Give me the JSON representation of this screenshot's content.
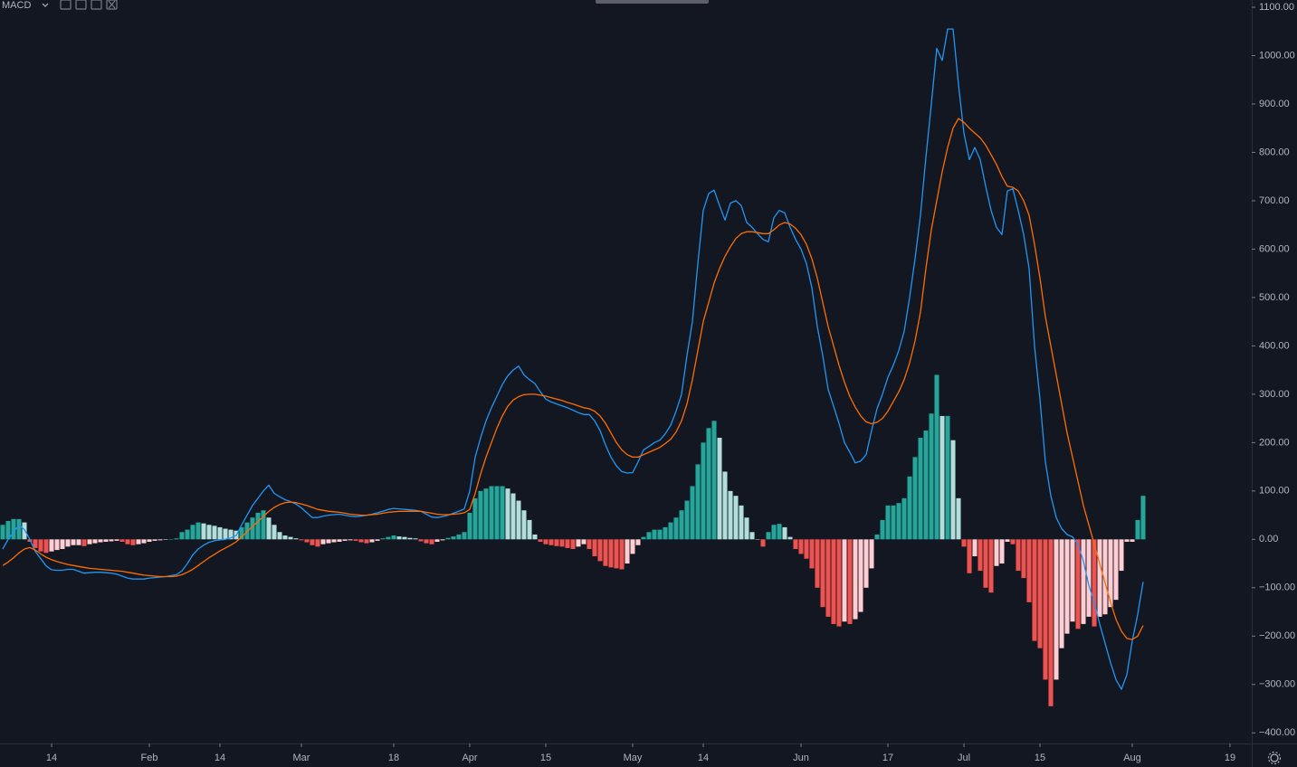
{
  "chart_data": {
    "type": "macd",
    "title": "MACD",
    "categories": [
      null,
      null,
      null,
      null,
      null,
      null,
      null,
      null,
      null,
      "14",
      null,
      null,
      null,
      null,
      null,
      null,
      null,
      null,
      null,
      null,
      null,
      null,
      null,
      null,
      null,
      null,
      null,
      "Feb",
      null,
      null,
      null,
      null,
      null,
      null,
      null,
      null,
      null,
      null,
      null,
      null,
      "14",
      null,
      null,
      null,
      null,
      null,
      null,
      null,
      null,
      null,
      null,
      null,
      null,
      null,
      null,
      "Mar",
      null,
      null,
      null,
      null,
      null,
      null,
      null,
      null,
      null,
      null,
      null,
      null,
      null,
      null,
      null,
      null,
      "18",
      null,
      null,
      null,
      null,
      null,
      null,
      null,
      null,
      null,
      null,
      null,
      null,
      null,
      "Apr",
      null,
      null,
      null,
      null,
      null,
      null,
      null,
      null,
      null,
      null,
      null,
      null,
      null,
      "15",
      null,
      null,
      null,
      null,
      null,
      null,
      null,
      null,
      null,
      null,
      null,
      null,
      null,
      null,
      null,
      "May",
      null,
      null,
      null,
      null,
      null,
      null,
      null,
      null,
      null,
      null,
      null,
      null,
      "14",
      null,
      null,
      null,
      null,
      null,
      null,
      null,
      null,
      null,
      null,
      null,
      null,
      null,
      null,
      null,
      null,
      null,
      "Jun",
      null,
      null,
      null,
      null,
      null,
      null,
      null,
      null,
      null,
      null,
      null,
      null,
      null,
      null,
      null,
      "17",
      null,
      null,
      null,
      null,
      null,
      null,
      null,
      null,
      null,
      null,
      null,
      null,
      null,
      "Jul",
      null,
      null,
      null,
      null,
      null,
      null,
      null,
      null,
      null,
      null,
      null,
      null,
      null,
      "15",
      null,
      null,
      null,
      null,
      null,
      null,
      null,
      null,
      null,
      null,
      null,
      null,
      null,
      null,
      null,
      null,
      "Aug",
      null,
      null,
      null,
      null,
      null,
      null,
      null,
      null,
      null,
      null,
      null,
      null,
      null,
      null,
      null,
      null,
      null,
      "19",
      null,
      null,
      null,
      null
    ],
    "series": [
      {
        "type": "bar",
        "colors": {
          "rising_above": "#26a69a",
          "falling_above": "#b2dfdb",
          "rising_below": "#ffcdd2",
          "falling_below": "#ef5350"
        },
        "values": [
          30,
          38,
          42,
          42,
          35,
          -5,
          -18,
          -25,
          -28,
          -25,
          -22,
          -20,
          -15,
          -12,
          -12,
          -14,
          -10,
          -8,
          -6,
          -5,
          -4,
          -3,
          -5,
          -10,
          -12,
          -10,
          -8,
          -5,
          -3,
          -2,
          -1,
          0,
          2,
          15,
          20,
          30,
          35,
          33,
          30,
          28,
          25,
          22,
          20,
          18,
          25,
          35,
          45,
          55,
          60,
          45,
          30,
          15,
          8,
          5,
          2,
          -2,
          -6,
          -12,
          -15,
          -10,
          -8,
          -6,
          -5,
          -3,
          -2,
          -3,
          -6,
          -8,
          -6,
          -3,
          2,
          5,
          8,
          6,
          5,
          3,
          2,
          -4,
          -8,
          -10,
          -5,
          -2,
          3,
          6,
          10,
          15,
          55,
          85,
          100,
          105,
          110,
          110,
          110,
          105,
          95,
          80,
          60,
          40,
          10,
          -5,
          -10,
          -12,
          -14,
          -15,
          -18,
          -20,
          -15,
          -10,
          -20,
          -35,
          -45,
          -55,
          -58,
          -60,
          -62,
          -50,
          -30,
          -12,
          5,
          15,
          20,
          20,
          25,
          35,
          45,
          60,
          80,
          110,
          155,
          200,
          230,
          245,
          210,
          140,
          100,
          90,
          70,
          45,
          15,
          0,
          -15,
          15,
          30,
          32,
          25,
          5,
          -20,
          -30,
          -40,
          -60,
          -100,
          -140,
          -160,
          -175,
          -180,
          -170,
          -175,
          -165,
          -150,
          -100,
          -60,
          10,
          40,
          70,
          70,
          75,
          85,
          130,
          170,
          210,
          225,
          260,
          340,
          255,
          255,
          205,
          85,
          -15,
          -70,
          -35,
          -65,
          -100,
          -110,
          -55,
          -50,
          -5,
          -10,
          -65,
          -80,
          -130,
          -210,
          -225,
          -290,
          -345,
          -290,
          -225,
          -195,
          -170,
          -185,
          -175,
          -160,
          -180,
          -160,
          -155,
          -140,
          -125,
          -65,
          -5,
          -5,
          40,
          90,
          null,
          null,
          null,
          null,
          null,
          null,
          null,
          null,
          null,
          null,
          null,
          null,
          null,
          null,
          null,
          null,
          null,
          null,
          null,
          null
        ]
      },
      {
        "type": "line",
        "color": "#2196f3",
        "values": [
          -20,
          0,
          15,
          30,
          20,
          0,
          -25,
          -40,
          -55,
          -63,
          -64,
          -64,
          -62,
          -62,
          -66,
          -70,
          -69,
          -68,
          -68,
          -69,
          -70,
          -72,
          -76,
          -80,
          -82,
          -82,
          -82,
          -80,
          -79,
          -78,
          -77,
          -75,
          -73,
          -65,
          -50,
          -32,
          -20,
          -12,
          -6,
          -3,
          -1,
          0,
          3,
          8,
          30,
          50,
          70,
          85,
          100,
          112,
          95,
          88,
          82,
          78,
          73,
          65,
          55,
          45,
          45,
          48,
          50,
          51,
          52,
          50,
          48,
          47,
          48,
          50,
          52,
          55,
          58,
          62,
          64,
          63,
          62,
          61,
          60,
          58,
          52,
          46,
          45,
          47,
          50,
          54,
          58,
          63,
          100,
          170,
          210,
          245,
          272,
          296,
          320,
          338,
          350,
          358,
          340,
          330,
          322,
          305,
          290,
          284,
          280,
          276,
          272,
          267,
          262,
          258,
          258,
          245,
          225,
          195,
          170,
          152,
          140,
          137,
          138,
          160,
          185,
          192,
          200,
          205,
          218,
          236,
          265,
          300,
          380,
          450,
          570,
          680,
          715,
          722,
          690,
          660,
          695,
          700,
          690,
          655,
          645,
          632,
          620,
          615,
          665,
          680,
          675,
          645,
          620,
          600,
          570,
          520,
          440,
          380,
          310,
          275,
          240,
          200,
          180,
          158,
          162,
          175,
          225,
          270,
          300,
          335,
          360,
          390,
          430,
          500,
          580,
          670,
          790,
          900,
          1015,
          990,
          1055,
          1055,
          940,
          840,
          785,
          810,
          785,
          730,
          680,
          645,
          630,
          720,
          725,
          680,
          630,
          560,
          400,
          290,
          160,
          90,
          45,
          22,
          10,
          5,
          -10,
          -45,
          -95,
          -130,
          -175,
          -215,
          -255,
          -290,
          -310,
          -280,
          -210,
          -155,
          -88,
          null,
          null,
          null,
          null,
          null,
          null,
          null,
          null,
          null,
          null,
          null,
          null,
          null,
          null,
          null,
          null,
          null,
          null,
          null,
          null
        ]
      },
      {
        "type": "line",
        "color": "#ff6d00",
        "values": [
          -54,
          -47,
          -38,
          -28,
          -20,
          -17,
          -22,
          -30,
          -37,
          -42,
          -46,
          -49,
          -52,
          -54,
          -56,
          -58,
          -60,
          -61,
          -62,
          -63,
          -64,
          -65,
          -66,
          -68,
          -70,
          -72,
          -74,
          -75,
          -76,
          -77,
          -77,
          -77,
          -76,
          -73,
          -68,
          -62,
          -54,
          -46,
          -38,
          -31,
          -24,
          -18,
          -12,
          -5,
          5,
          16,
          27,
          37,
          47,
          58,
          66,
          72,
          76,
          77,
          76,
          73,
          70,
          66,
          62,
          60,
          58,
          57,
          56,
          54,
          52,
          51,
          50,
          50,
          51,
          52,
          54,
          56,
          57,
          58,
          58,
          58,
          58,
          58,
          56,
          54,
          52,
          51,
          51,
          52,
          53,
          55,
          62,
          95,
          135,
          170,
          200,
          230,
          255,
          275,
          288,
          295,
          299,
          300,
          300,
          298,
          296,
          293,
          290,
          287,
          283,
          280,
          276,
          272,
          270,
          265,
          255,
          240,
          220,
          200,
          185,
          175,
          170,
          170,
          175,
          180,
          185,
          190,
          198,
          207,
          222,
          245,
          280,
          330,
          390,
          450,
          490,
          530,
          560,
          585,
          605,
          622,
          632,
          636,
          636,
          634,
          632,
          632,
          640,
          650,
          655,
          652,
          643,
          630,
          610,
          580,
          540,
          490,
          440,
          400,
          360,
          325,
          295,
          273,
          255,
          243,
          239,
          242,
          250,
          265,
          285,
          305,
          330,
          365,
          410,
          470,
          560,
          640,
          700,
          760,
          810,
          850,
          870,
          862,
          850,
          840,
          830,
          815,
          795,
          775,
          750,
          730,
          728,
          720,
          700,
          670,
          610,
          540,
          460,
          400,
          340,
          280,
          220,
          170,
          120,
          70,
          30,
          -10,
          -50,
          -90,
          -130,
          -165,
          -190,
          -205,
          -207,
          -200,
          -178,
          null,
          null,
          null,
          null,
          null,
          null,
          null,
          null,
          null,
          null,
          null,
          null,
          null,
          null,
          null,
          null,
          null,
          null,
          null,
          null
        ]
      }
    ],
    "ylim": [
      -422,
      1115
    ],
    "yticks": [
      {
        "value": 1100,
        "label": "1100.00"
      },
      {
        "value": 1000,
        "label": "1000.00"
      },
      {
        "value": 900,
        "label": "900.00"
      },
      {
        "value": 800,
        "label": "800.00"
      },
      {
        "value": 700,
        "label": "700.00"
      },
      {
        "value": 600,
        "label": "600.00"
      },
      {
        "value": 500,
        "label": "500.00"
      },
      {
        "value": 400,
        "label": "400.00"
      },
      {
        "value": 300,
        "label": "300.00"
      },
      {
        "value": 200,
        "label": "200.00"
      },
      {
        "value": 100,
        "label": "100.00"
      },
      {
        "value": 0,
        "label": "0.00"
      },
      {
        "value": -100,
        "label": "−100.00"
      },
      {
        "value": -200,
        "label": "−200.00"
      },
      {
        "value": -300,
        "label": "−300.00"
      },
      {
        "value": -400,
        "label": "−400.00"
      }
    ],
    "grid": false
  }
}
